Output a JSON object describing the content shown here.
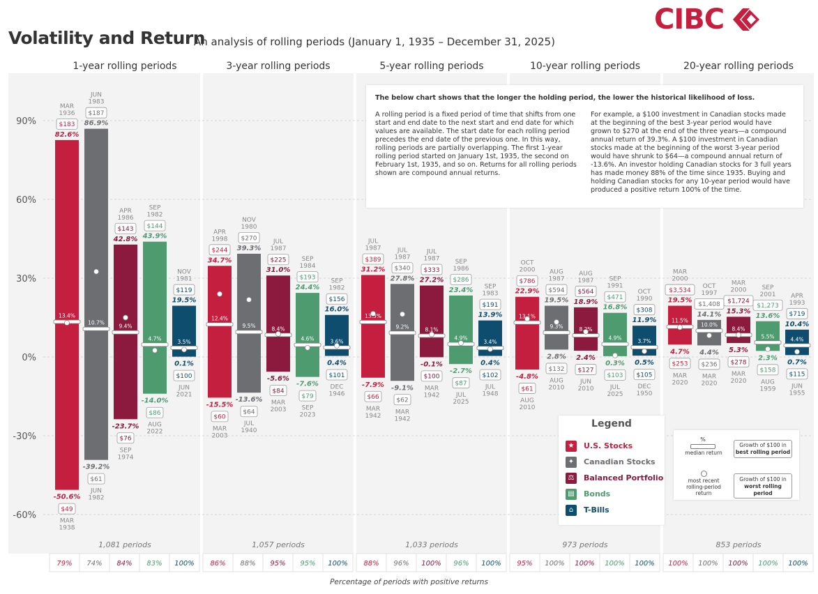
{
  "header": {
    "title": "Volatility and Return",
    "subtitle": "An analysis of rolling periods (January 1, 1935 – December 31, 2025)",
    "logo_text": "CIBC"
  },
  "colors": {
    "us_stocks": "#c41f3e",
    "canadian_stocks": "#6d6e71",
    "balanced": "#8b1a3e",
    "bonds": "#4e9b70",
    "tbills": "#0e4d6e",
    "panel_bg": "#f3f3f3"
  },
  "info_box": {
    "heading": "The below chart shows that the longer the holding period, the lower the historical likelihood of loss.",
    "paragraph1": "A rolling period is a fixed period of time that shifts from one start and end date to the next start and end date for which values are available. The start date for each rolling period precedes the end date of the previous one. In this way, rolling periods are partially overlapping. The first 1-year rolling period started on January 1st, 1935, the second on February 1st, 1935, and so on. Returns for all rolling periods shown are compound annual returns.",
    "paragraph2": "For example, a $100 investment in Canadian stocks made at the beginning of the best 3-year period would have grown to $270 at the end of the three years—a compound annual return of 39.3%. A $100 investment in Canadian stocks made at the beginning of the worst 3-year period would have shrunk to $64—a compound annual return of -13.6%. An investor holding Canadian stocks for 3 full years has made money 88% of the time since 1935. Buying and holding Canadian stocks for any 10-year period would have produced a positive return 100% of the time."
  },
  "legend": {
    "title": "Legend",
    "items": [
      {
        "label": "U.S. Stocks",
        "color": "#c41f3e",
        "icon": "star-icon"
      },
      {
        "label": "Canadian Stocks",
        "color": "#6d6e71",
        "icon": "maple-leaf-icon"
      },
      {
        "label": "Balanced Portfolio",
        "color": "#8b1a3e",
        "icon": "scale-icon"
      },
      {
        "label": "Bonds",
        "color": "#4e9b70",
        "icon": "document-icon"
      },
      {
        "label": "T-Bills",
        "color": "#0e4d6e",
        "icon": "bank-icon"
      }
    ]
  },
  "key": {
    "median_symbol": "%",
    "median_label": "median return",
    "recent_label": "most recent rolling-period return",
    "best_label_1": "Growth of $100 in",
    "best_label_2": "best rolling period",
    "worst_label_1": "Growth of $100 in",
    "worst_label_2": "worst rolling period"
  },
  "footer_note": "Percentage of periods with positive returns",
  "chart_data": {
    "type": "bar",
    "subtype": "floating-range",
    "ylim": [
      -68,
      106
    ],
    "yticks": [
      90,
      60,
      30,
      0,
      -30,
      -60
    ],
    "ytick_labels": [
      "90%",
      "60%",
      "30%",
      "0%",
      "-30%",
      "-60%"
    ],
    "series_names": [
      "U.S. Stocks",
      "Canadian Stocks",
      "Balanced Portfolio",
      "Bonds",
      "T-Bills"
    ],
    "groups": [
      {
        "title": "1-year rolling periods",
        "periods_label": "1,081 periods",
        "bars": [
          {
            "max": 82.6,
            "max_label": "82.6%",
            "max_month": "MAR",
            "max_year": "1936",
            "max_growth": "$183",
            "min": -50.6,
            "min_label": "-50.6%",
            "min_month": "MAR",
            "min_year": "1938",
            "min_growth": "$49",
            "median": 13.4,
            "median_label": "13.4%",
            "recent": 13.0,
            "positive": "79%"
          },
          {
            "max": 86.9,
            "max_label": "86.9%",
            "max_month": "JUN",
            "max_year": "1983",
            "max_growth": "$187",
            "min": -39.2,
            "min_label": "-39.2%",
            "min_month": "JUN",
            "min_year": "1982",
            "min_growth": "$61",
            "median": 10.7,
            "median_label": "10.7%",
            "recent": 32.5,
            "positive": "74%"
          },
          {
            "max": 42.8,
            "max_label": "42.8%",
            "max_month": "APR",
            "max_year": "1986",
            "max_growth": "$143",
            "min": -23.7,
            "min_label": "-23.7%",
            "min_month": "SEP",
            "min_year": "1974",
            "min_growth": "$76",
            "median": 9.4,
            "median_label": "9.4%",
            "recent": 15.0,
            "positive": "84%"
          },
          {
            "max": 43.9,
            "max_label": "43.9%",
            "max_month": "SEP",
            "max_year": "1982",
            "max_growth": "$144",
            "min": -14.0,
            "min_label": "-14.0%",
            "min_month": "AUG",
            "min_year": "2022",
            "min_growth": "$86",
            "median": 4.7,
            "median_label": "4.7%",
            "recent": 2.5,
            "positive": "83%"
          },
          {
            "max": 19.5,
            "max_label": "19.5%",
            "max_month": "NOV",
            "max_year": "1981",
            "max_growth": "$119",
            "min": 0.1,
            "min_label": "0.1%",
            "min_month": "JUN",
            "min_year": "2021",
            "min_growth": "$100",
            "median": 3.5,
            "median_label": "3.5%",
            "recent": 2.8,
            "positive": "100%"
          }
        ]
      },
      {
        "title": "3-year rolling periods",
        "periods_label": "1,057 periods",
        "bars": [
          {
            "max": 34.7,
            "max_label": "34.7%",
            "max_month": "APR",
            "max_year": "1998",
            "max_growth": "$244",
            "min": -15.5,
            "min_label": "-15.5%",
            "min_month": "MAR",
            "min_year": "2003",
            "min_growth": "$60",
            "median": 12.4,
            "median_label": "12.4%",
            "recent": 24.0,
            "positive": "86%"
          },
          {
            "max": 39.3,
            "max_label": "39.3%",
            "max_month": "NOV",
            "max_year": "1980",
            "max_growth": "$270",
            "min": -13.6,
            "min_label": "-13.6%",
            "min_month": "JUL",
            "min_year": "1940",
            "min_growth": "$64",
            "median": 9.5,
            "median_label": "9.5%",
            "recent": 21.8,
            "positive": "88%"
          },
          {
            "max": 31.0,
            "max_label": "31.0%",
            "max_month": "JUL",
            "max_year": "1987",
            "max_growth": "$225",
            "min": -5.6,
            "min_label": "-5.6%",
            "min_month": "MAR",
            "min_year": "2003",
            "min_growth": "$84",
            "median": 8.4,
            "median_label": "8.4%",
            "recent": 8.8,
            "positive": "95%"
          },
          {
            "max": 24.4,
            "max_label": "24.4%",
            "max_month": "SEP",
            "max_year": "1984",
            "max_growth": "$193",
            "min": -7.6,
            "min_label": "-7.6%",
            "min_month": "SEP",
            "min_year": "2023",
            "min_growth": "$79",
            "median": 4.6,
            "median_label": "4.6%",
            "recent": 3.5,
            "positive": "95%"
          },
          {
            "max": 16.0,
            "max_label": "16.0%",
            "max_month": "SEP",
            "max_year": "1982",
            "max_growth": "$156",
            "min": 0.4,
            "min_label": "0.4%",
            "min_month": "DEC",
            "min_year": "1946",
            "min_growth": "$101",
            "median": 3.6,
            "median_label": "3.6%",
            "recent": 4.3,
            "positive": "100%"
          }
        ]
      },
      {
        "title": "5-year rolling periods",
        "periods_label": "1,033 periods",
        "bars": [
          {
            "max": 31.2,
            "max_label": "31.2%",
            "max_month": "JUL",
            "max_year": "1987",
            "max_growth": "$389",
            "min": -7.9,
            "min_label": "-7.9%",
            "min_month": "MAR",
            "min_year": "1942",
            "min_growth": "$66",
            "median": 13.3,
            "median_label": "13.3%",
            "recent": 16.5,
            "positive": "88%"
          },
          {
            "max": 27.8,
            "max_label": "27.8%",
            "max_month": "JUL",
            "max_year": "1987",
            "max_growth": "$340",
            "min": -9.1,
            "min_label": "-9.1%",
            "min_month": "MAR",
            "min_year": "1942",
            "min_growth": "$62",
            "median": 9.2,
            "median_label": "9.2%",
            "recent": 16.3,
            "positive": "96%"
          },
          {
            "max": 27.2,
            "max_label": "27.2%",
            "max_month": "JUL",
            "max_year": "1987",
            "max_growth": "$333",
            "min": -0.1,
            "min_label": "-0.1%",
            "min_month": "MAR",
            "min_year": "1942",
            "min_growth": "$100",
            "median": 8.1,
            "median_label": "8.1%",
            "recent": 8.6,
            "positive": "100%"
          },
          {
            "max": 23.4,
            "max_label": "23.4%",
            "max_month": "SEP",
            "max_year": "1986",
            "max_growth": "$286",
            "min": -2.7,
            "min_label": "-2.7%",
            "min_month": "JUL",
            "min_year": "2025",
            "min_growth": "$87",
            "median": 4.9,
            "median_label": "4.9%",
            "recent": 5.3,
            "positive": "96%"
          },
          {
            "max": 13.9,
            "max_label": "13.9%",
            "max_month": "SEP",
            "max_year": "1983",
            "max_growth": "$191",
            "min": 0.4,
            "min_label": "0.4%",
            "min_month": "JUL",
            "min_year": "1948",
            "min_growth": "$102",
            "median": 3.4,
            "median_label": "3.4%",
            "recent": 3.0,
            "positive": "100%"
          }
        ]
      },
      {
        "title": "10-year rolling periods",
        "periods_label": "973 periods",
        "bars": [
          {
            "max": 22.9,
            "max_label": "22.9%",
            "max_month": "OCT",
            "max_year": "2000",
            "max_growth": "$786",
            "min": -4.8,
            "min_label": "-4.8%",
            "min_month": "AUG",
            "min_year": "2010",
            "min_growth": "$61",
            "median": 13.1,
            "median_label": "13.1%",
            "recent": 14.5,
            "positive": "95%"
          },
          {
            "max": 19.5,
            "max_label": "19.5%",
            "max_month": "AUG",
            "max_year": "1987",
            "max_growth": "$594",
            "min": 2.8,
            "min_label": "2.8%",
            "min_month": "AUG",
            "min_year": "2010",
            "min_growth": "$132",
            "median": 9.3,
            "median_label": "9.3%",
            "recent": 13.3,
            "positive": "100%"
          },
          {
            "max": 18.9,
            "max_label": "18.9%",
            "max_month": "AUG",
            "max_year": "1987",
            "max_growth": "$564",
            "min": 2.4,
            "min_label": "2.4%",
            "min_month": "JUN",
            "min_year": "2010",
            "min_growth": "$127",
            "median": 8.2,
            "median_label": "8.2%",
            "recent": 9.6,
            "positive": "100%"
          },
          {
            "max": 16.8,
            "max_label": "16.8%",
            "max_month": "SEP",
            "max_year": "1991",
            "max_growth": "$471",
            "min": 0.3,
            "min_label": "0.3%",
            "min_month": "JUL",
            "min_year": "2025",
            "min_growth": "$103",
            "median": 4.9,
            "median_label": "4.9%",
            "recent": 0.6,
            "positive": "100%"
          },
          {
            "max": 11.9,
            "max_label": "11.9%",
            "max_month": "OCT",
            "max_year": "1990",
            "max_growth": "$308",
            "min": 0.5,
            "min_label": "0.5%",
            "min_month": "DEC",
            "min_year": "1950",
            "min_growth": "$105",
            "median": 3.7,
            "median_label": "3.7%",
            "recent": 2.2,
            "positive": "100%"
          }
        ]
      },
      {
        "title": "20-year rolling periods",
        "periods_label": "853 periods",
        "bars": [
          {
            "max": 19.5,
            "max_label": "19.5%",
            "max_month": "MAR",
            "max_year": "2000",
            "max_growth": "$3,534",
            "min": 4.7,
            "min_label": "4.7%",
            "min_month": "MAR",
            "min_year": "2020",
            "min_growth": "$253",
            "median": 11.5,
            "median_label": "11.5%",
            "recent": 11.3,
            "positive": "100%"
          },
          {
            "max": 14.1,
            "max_label": "14.1%",
            "max_month": "OCT",
            "max_year": "1997",
            "max_growth": "$1,408",
            "min": 4.4,
            "min_label": "4.4%",
            "min_month": "MAR",
            "min_year": "2020",
            "min_growth": "$236",
            "median": 10.0,
            "median_label": "10.0%",
            "recent": 8.2,
            "positive": "100%"
          },
          {
            "max": 15.3,
            "max_label": "15.3%",
            "max_month": "MAR",
            "max_year": "2000",
            "max_growth": "$1,724",
            "min": 5.3,
            "min_label": "5.3%",
            "min_month": "MAR",
            "min_year": "2020",
            "min_growth": "$278",
            "median": 8.4,
            "median_label": "8.4%",
            "recent": 8.4,
            "positive": "100%"
          },
          {
            "max": 13.6,
            "max_label": "13.6%",
            "max_month": "SEP",
            "max_year": "2001",
            "max_growth": "$1,273",
            "min": 2.3,
            "min_label": "2.3%",
            "min_month": "AUG",
            "min_year": "1959",
            "min_growth": "$158",
            "median": 5.5,
            "median_label": "5.5%",
            "recent": 3.0,
            "positive": "100%"
          },
          {
            "max": 10.4,
            "max_label": "10.4%",
            "max_month": "APR",
            "max_year": "1993",
            "max_growth": "$719",
            "min": 0.7,
            "min_label": "0.7%",
            "min_month": "JUN",
            "min_year": "1955",
            "min_growth": "$115",
            "median": 4.4,
            "median_label": "4.4%",
            "recent": 2.0,
            "positive": "100%"
          }
        ]
      }
    ]
  }
}
